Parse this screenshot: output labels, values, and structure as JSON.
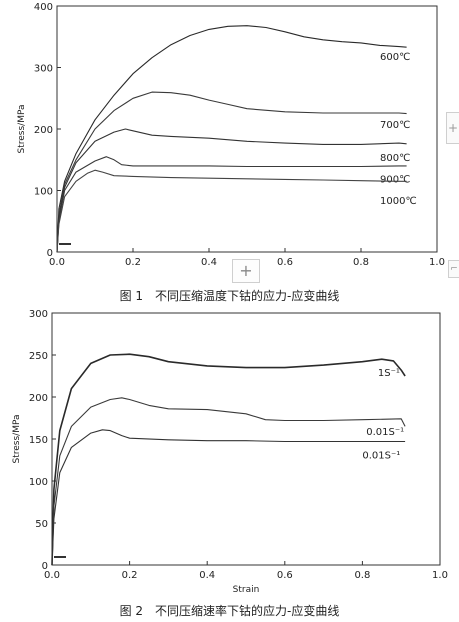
{
  "chart_data": [
    {
      "type": "line",
      "title": "",
      "caption": "图 1　不同压缩温度下钴的应力-应变曲线",
      "xlabel": "",
      "ylabel": "Stress/MPa",
      "xlim": [
        0.0,
        1.0
      ],
      "ylim": [
        0,
        400
      ],
      "xticks": [
        0.0,
        0.2,
        0.4,
        0.6,
        0.8,
        1.0
      ],
      "xtick_labels": [
        "0.0",
        "0.2",
        "0.4",
        "0.6",
        "0.8",
        "1.0"
      ],
      "yticks": [
        0,
        100,
        200,
        300,
        400
      ],
      "ytick_labels": [
        "0",
        "100",
        "200",
        "300",
        "400"
      ],
      "grid": false,
      "series": [
        {
          "name": "600℃",
          "label": "600℃",
          "label_at": [
            0.85,
            312
          ],
          "x": [
            0,
            0.005,
            0.02,
            0.05,
            0.1,
            0.15,
            0.2,
            0.25,
            0.3,
            0.35,
            0.4,
            0.45,
            0.5,
            0.55,
            0.6,
            0.65,
            0.7,
            0.75,
            0.8,
            0.85,
            0.9,
            0.92
          ],
          "y": [
            0,
            70,
            115,
            160,
            215,
            255,
            290,
            316,
            337,
            352,
            362,
            367,
            368,
            365,
            358,
            350,
            345,
            342,
            340,
            336,
            334,
            333
          ]
        },
        {
          "name": "700℃",
          "label": "700℃",
          "label_at": [
            0.85,
            202
          ],
          "x": [
            0,
            0.005,
            0.02,
            0.05,
            0.1,
            0.15,
            0.2,
            0.25,
            0.3,
            0.35,
            0.4,
            0.45,
            0.5,
            0.6,
            0.7,
            0.8,
            0.9,
            0.92
          ],
          "y": [
            0,
            60,
            110,
            150,
            200,
            230,
            250,
            260,
            259,
            255,
            247,
            240,
            233,
            228,
            226,
            226,
            226,
            225
          ]
        },
        {
          "name": "800℃",
          "label": "800℃",
          "label_at": [
            0.85,
            148
          ],
          "x": [
            0,
            0.005,
            0.02,
            0.05,
            0.1,
            0.15,
            0.18,
            0.2,
            0.25,
            0.3,
            0.4,
            0.5,
            0.6,
            0.7,
            0.8,
            0.9,
            0.92
          ],
          "y": [
            0,
            55,
            105,
            145,
            180,
            195,
            200,
            197,
            190,
            188,
            185,
            180,
            177,
            175,
            175,
            177,
            176
          ]
        },
        {
          "name": "900℃",
          "label": "900℃",
          "label_at": [
            0.85,
            113
          ],
          "x": [
            0,
            0.005,
            0.02,
            0.05,
            0.1,
            0.13,
            0.15,
            0.17,
            0.2,
            0.3,
            0.4,
            0.5,
            0.6,
            0.7,
            0.8,
            0.9,
            0.92
          ],
          "y": [
            0,
            50,
            100,
            130,
            148,
            155,
            150,
            142,
            140,
            140,
            140,
            139,
            139,
            139,
            139,
            140,
            140
          ]
        },
        {
          "name": "1000℃",
          "label": "1000℃",
          "label_at": [
            0.85,
            78
          ],
          "x": [
            0,
            0.005,
            0.02,
            0.05,
            0.08,
            0.1,
            0.12,
            0.15,
            0.2,
            0.3,
            0.4,
            0.5,
            0.6,
            0.7,
            0.8,
            0.9,
            0.92
          ],
          "y": [
            0,
            45,
            90,
            115,
            128,
            133,
            130,
            124,
            123,
            121,
            120,
            119,
            118,
            117,
            116,
            115,
            115
          ]
        }
      ]
    },
    {
      "type": "line",
      "title": "",
      "caption": "图 2　不同压缩速率下钴的应力-应变曲线",
      "xlabel": "Strain",
      "ylabel": "Stress/MPa",
      "xlim": [
        0.0,
        1.0
      ],
      "ylim": [
        0,
        300
      ],
      "xticks": [
        0.0,
        0.2,
        0.4,
        0.6,
        0.8,
        1.0
      ],
      "xtick_labels": [
        "0.0",
        "0.2",
        "0.4",
        "0.6",
        "0.8",
        "1.0"
      ],
      "yticks": [
        0,
        50,
        100,
        150,
        200,
        250,
        300
      ],
      "ytick_labels": [
        "0",
        "50",
        "100",
        "150",
        "200",
        "250",
        "300"
      ],
      "grid": false,
      "series": [
        {
          "name": "1S⁻¹",
          "label": "1S⁻¹",
          "label_at": [
            0.84,
            225
          ],
          "x": [
            0,
            0.005,
            0.02,
            0.05,
            0.1,
            0.15,
            0.2,
            0.25,
            0.3,
            0.4,
            0.5,
            0.6,
            0.7,
            0.8,
            0.85,
            0.88,
            0.9,
            0.91
          ],
          "y": [
            0,
            90,
            160,
            210,
            240,
            250,
            251,
            248,
            242,
            237,
            235,
            235,
            238,
            242,
            245,
            243,
            232,
            225
          ]
        },
        {
          "name": "0.01S⁻¹",
          "label": "0.01S⁻¹",
          "label_at": [
            0.81,
            155
          ],
          "x": [
            0,
            0.005,
            0.02,
            0.05,
            0.1,
            0.15,
            0.18,
            0.2,
            0.25,
            0.3,
            0.4,
            0.5,
            0.55,
            0.6,
            0.7,
            0.8,
            0.9,
            0.91
          ],
          "y": [
            0,
            70,
            130,
            165,
            188,
            197,
            199,
            197,
            190,
            186,
            185,
            180,
            173,
            172,
            172,
            173,
            174,
            165
          ]
        },
        {
          "name": "0.01S⁻¹",
          "label": "0.01S⁻¹",
          "label_at": [
            0.8,
            127
          ],
          "x": [
            0,
            0.005,
            0.02,
            0.05,
            0.1,
            0.13,
            0.15,
            0.18,
            0.2,
            0.3,
            0.4,
            0.5,
            0.6,
            0.7,
            0.8,
            0.9,
            0.91
          ],
          "y": [
            0,
            55,
            110,
            140,
            157,
            161,
            160,
            154,
            151,
            149,
            148,
            148,
            147,
            147,
            147,
            147,
            147
          ]
        }
      ]
    }
  ],
  "ui": {
    "add_label": "+",
    "side_label": "+",
    "corner_label": "⌐"
  }
}
